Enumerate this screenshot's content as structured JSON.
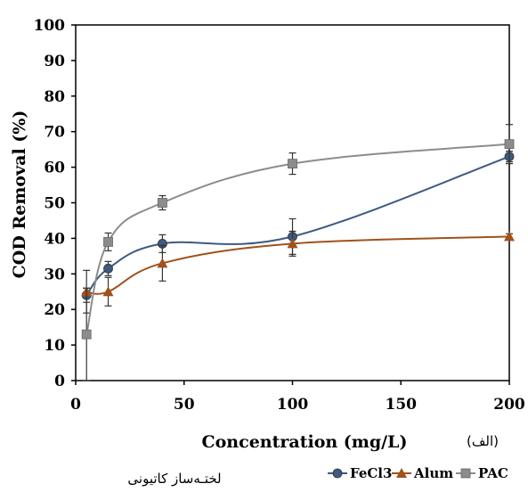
{
  "chart_data": {
    "type": "line",
    "title": "",
    "xlabel": "Concentration (mg/L)",
    "ylabel": "COD  Removal (%)",
    "xlim": [
      0,
      200
    ],
    "ylim": [
      0,
      100
    ],
    "x_ticks": [
      "0",
      "50",
      "100",
      "150",
      "200"
    ],
    "y_ticks": [
      "0",
      "10",
      "20",
      "30",
      "40",
      "50",
      "60",
      "70",
      "80",
      "90",
      "100"
    ],
    "grid": false,
    "legend_position": "bottom-right",
    "panel_label": "(الف)",
    "caption": "لختـه‌ساز کاتیونی",
    "series": [
      {
        "name": "FeCl3",
        "color": "#3d5a80",
        "marker": "circle",
        "x": [
          5,
          15,
          40,
          100,
          200
        ],
        "y": [
          24,
          31.5,
          38.5,
          40.5,
          63
        ],
        "err": [
          2,
          2,
          2.5,
          5,
          1.5
        ]
      },
      {
        "name": "Alum",
        "color": "#a0521c",
        "marker": "triangle",
        "x": [
          5,
          15,
          40,
          100,
          200
        ],
        "y": [
          25,
          25,
          33,
          38.5,
          40.5
        ],
        "err": [
          6,
          4,
          5,
          3.5,
          0.8
        ]
      },
      {
        "name": "PAC",
        "color": "#8c8c8c",
        "marker": "square",
        "x": [
          5,
          15,
          40,
          100,
          200
        ],
        "y": [
          13,
          39,
          50,
          61,
          66.5
        ],
        "err": [
          13,
          2.5,
          2,
          3,
          5.5
        ]
      }
    ]
  }
}
